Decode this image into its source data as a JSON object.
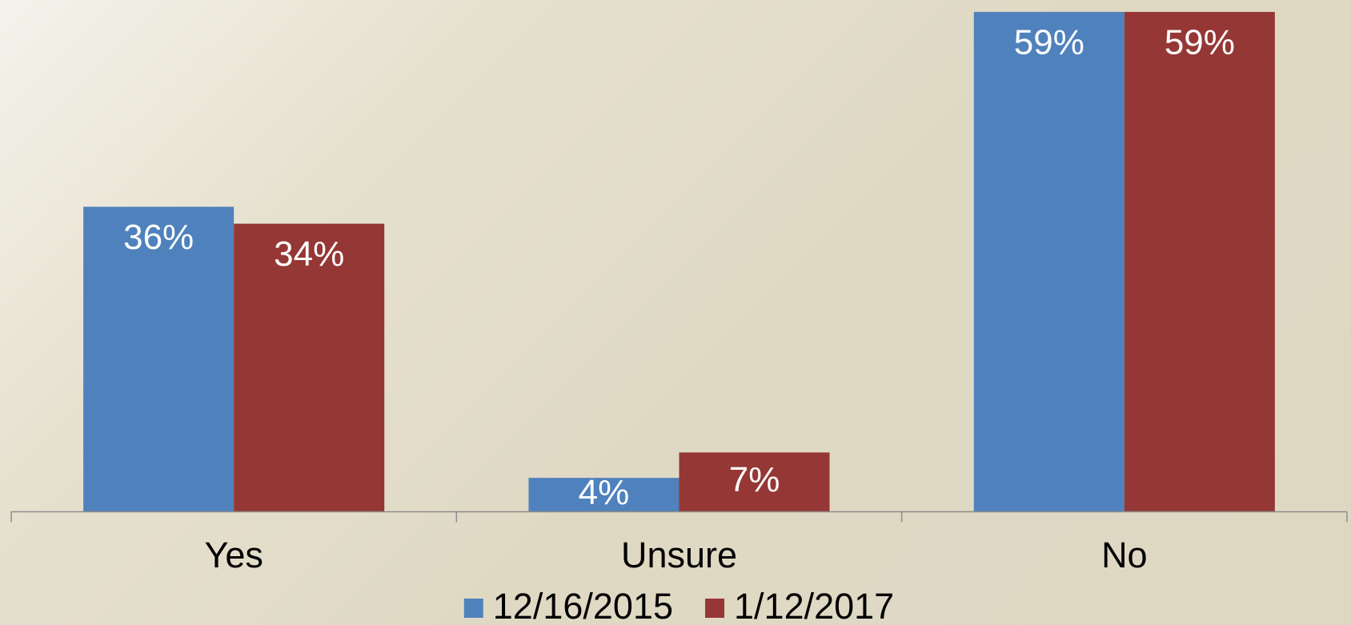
{
  "chart_data": {
    "type": "bar",
    "categories": [
      "Yes",
      "Unsure",
      "No"
    ],
    "series": [
      {
        "name": "12/16/2015",
        "color": "#4f81bd",
        "values": [
          36,
          4,
          59
        ],
        "value_labels": [
          "36%",
          "4%",
          "59%"
        ]
      },
      {
        "name": "1/12/2017",
        "color": "#953735",
        "values": [
          34,
          7,
          59
        ],
        "value_labels": [
          "34%",
          "7%",
          "59%"
        ]
      }
    ],
    "ylim": [
      0,
      60
    ],
    "legend": "bottom"
  }
}
